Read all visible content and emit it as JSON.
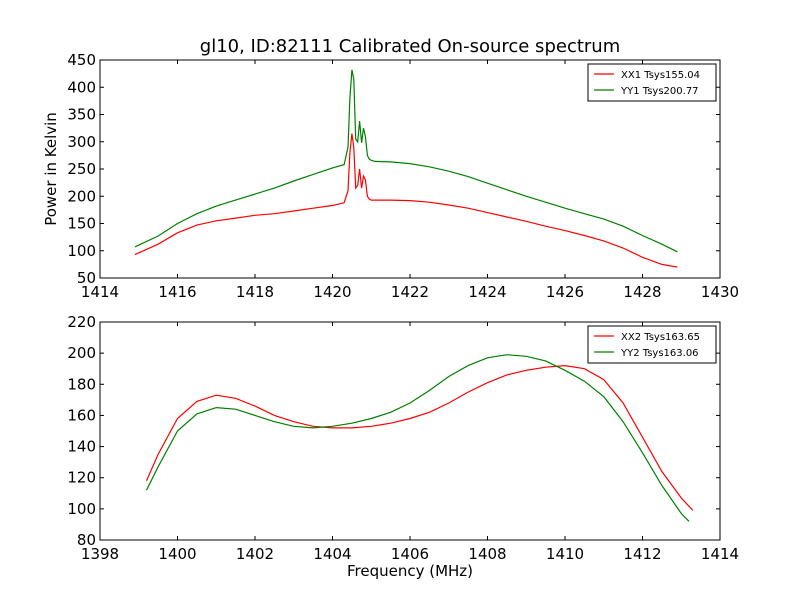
{
  "chart_data": [
    {
      "type": "line",
      "title": "gl10, ID:82111 Calibrated On-source spectrum",
      "xlabel": "",
      "ylabel": "Power in Kelvin",
      "xlim": [
        1414,
        1430
      ],
      "ylim": [
        50,
        450
      ],
      "xticks": [
        1414,
        1416,
        1418,
        1420,
        1422,
        1424,
        1426,
        1428,
        1430
      ],
      "yticks": [
        50,
        100,
        150,
        200,
        250,
        300,
        350,
        400,
        450
      ],
      "grid": false,
      "legend_position": "top-right",
      "series": [
        {
          "name": "XX1 Tsys155.04",
          "color": "#ff0000",
          "x": [
            1414.9,
            1415.5,
            1416.0,
            1416.5,
            1417.0,
            1417.5,
            1418.0,
            1418.5,
            1419.0,
            1419.5,
            1420.0,
            1420.3,
            1420.4,
            1420.45,
            1420.5,
            1420.55,
            1420.6,
            1420.65,
            1420.7,
            1420.75,
            1420.8,
            1420.85,
            1420.9,
            1420.95,
            1421.0,
            1421.1,
            1421.5,
            1422.0,
            1422.5,
            1423.0,
            1423.5,
            1424.0,
            1424.5,
            1425.0,
            1425.5,
            1426.0,
            1426.5,
            1427.0,
            1427.5,
            1428.0,
            1428.5,
            1428.9
          ],
          "y": [
            93,
            112,
            133,
            147,
            155,
            160,
            165,
            168,
            173,
            178,
            183,
            188,
            210,
            280,
            315,
            290,
            215,
            220,
            250,
            215,
            237,
            230,
            200,
            195,
            193,
            193,
            193,
            192,
            189,
            184,
            178,
            170,
            162,
            154,
            145,
            137,
            128,
            118,
            105,
            88,
            75,
            70
          ]
        },
        {
          "name": "YY1 Tsys200.77",
          "color": "#008000",
          "x": [
            1414.9,
            1415.5,
            1416.0,
            1416.5,
            1417.0,
            1417.5,
            1418.0,
            1418.5,
            1419.0,
            1419.5,
            1420.0,
            1420.3,
            1420.4,
            1420.45,
            1420.5,
            1420.55,
            1420.6,
            1420.65,
            1420.7,
            1420.75,
            1420.8,
            1420.85,
            1420.9,
            1420.95,
            1421.0,
            1421.1,
            1421.5,
            1422.0,
            1422.5,
            1423.0,
            1423.5,
            1424.0,
            1424.5,
            1425.0,
            1425.5,
            1426.0,
            1426.5,
            1427.0,
            1427.5,
            1428.0,
            1428.5,
            1428.9
          ],
          "y": [
            107,
            127,
            150,
            168,
            182,
            193,
            204,
            215,
            228,
            240,
            252,
            258,
            290,
            380,
            432,
            415,
            305,
            300,
            338,
            298,
            325,
            310,
            275,
            268,
            266,
            264,
            263,
            260,
            254,
            246,
            236,
            224,
            212,
            200,
            189,
            178,
            168,
            158,
            145,
            128,
            112,
            98
          ]
        }
      ]
    },
    {
      "type": "line",
      "title": "",
      "xlabel": "Frequency (MHz)",
      "ylabel": "",
      "xlim": [
        1398,
        1414
      ],
      "ylim": [
        80,
        220
      ],
      "xticks": [
        1398,
        1400,
        1402,
        1404,
        1406,
        1408,
        1410,
        1412,
        1414
      ],
      "yticks": [
        80,
        100,
        120,
        140,
        160,
        180,
        200,
        220
      ],
      "grid": false,
      "legend_position": "top-right",
      "series": [
        {
          "name": "XX2 Tsys163.65",
          "color": "#ff0000",
          "x": [
            1399.2,
            1399.5,
            1400.0,
            1400.5,
            1401.0,
            1401.5,
            1402.0,
            1402.5,
            1403.0,
            1403.5,
            1404.0,
            1404.5,
            1405.0,
            1405.5,
            1406.0,
            1406.5,
            1407.0,
            1407.5,
            1408.0,
            1408.5,
            1409.0,
            1409.5,
            1410.0,
            1410.5,
            1411.0,
            1411.5,
            1412.0,
            1412.5,
            1413.0,
            1413.3
          ],
          "y": [
            118,
            135,
            158,
            169,
            173,
            171,
            166,
            160,
            156,
            153,
            152,
            152,
            153,
            155,
            158,
            162,
            168,
            175,
            181,
            186,
            189,
            191,
            192,
            190,
            183,
            168,
            146,
            124,
            107,
            99
          ]
        },
        {
          "name": "YY2 Tsys163.06",
          "color": "#008000",
          "x": [
            1399.2,
            1399.5,
            1400.0,
            1400.5,
            1401.0,
            1401.5,
            1402.0,
            1402.5,
            1403.0,
            1403.5,
            1404.0,
            1404.5,
            1405.0,
            1405.5,
            1406.0,
            1406.5,
            1407.0,
            1407.5,
            1408.0,
            1408.5,
            1409.0,
            1409.5,
            1410.0,
            1410.5,
            1411.0,
            1411.5,
            1412.0,
            1412.5,
            1413.0,
            1413.2
          ],
          "y": [
            112,
            127,
            150,
            161,
            165,
            164,
            160,
            156,
            153,
            152,
            153,
            155,
            158,
            162,
            168,
            176,
            185,
            192,
            197,
            199,
            198,
            195,
            189,
            182,
            172,
            156,
            136,
            115,
            97,
            92
          ]
        }
      ]
    }
  ]
}
